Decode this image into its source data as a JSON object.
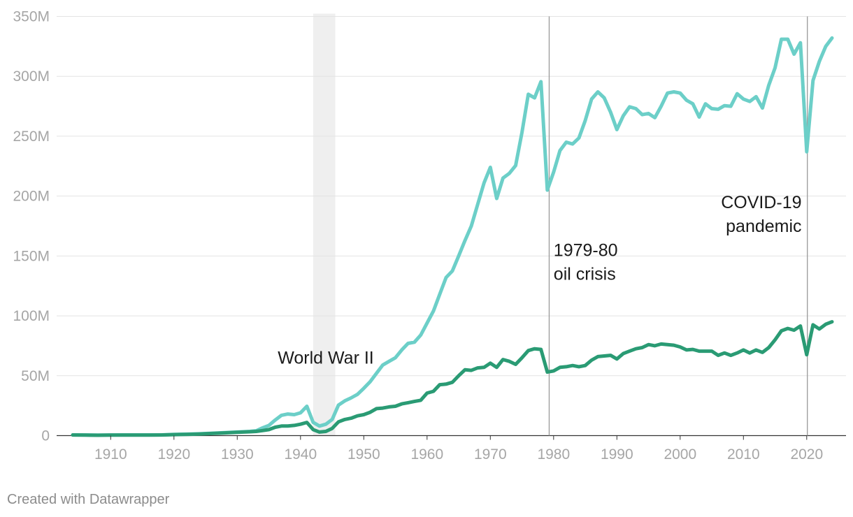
{
  "chart_data": {
    "type": "line",
    "xlim": [
      1903,
      2025
    ],
    "ylim": [
      0,
      350000000
    ],
    "grid": true,
    "y_ticks": [
      {
        "value": 0,
        "label": "0"
      },
      {
        "value": 50000000,
        "label": "50M"
      },
      {
        "value": 100000000,
        "label": "100M"
      },
      {
        "value": 150000000,
        "label": "150M"
      },
      {
        "value": 200000000,
        "label": "200M"
      },
      {
        "value": 250000000,
        "label": "250M"
      },
      {
        "value": 300000000,
        "label": "300M"
      },
      {
        "value": 350000000,
        "label": "350M"
      }
    ],
    "x_ticks": [
      {
        "value": 1910,
        "label": "1910"
      },
      {
        "value": 1920,
        "label": "1920"
      },
      {
        "value": 1930,
        "label": "1930"
      },
      {
        "value": 1940,
        "label": "1940"
      },
      {
        "value": 1950,
        "label": "1950"
      },
      {
        "value": 1960,
        "label": "1960"
      },
      {
        "value": 1970,
        "label": "1970"
      },
      {
        "value": 1980,
        "label": "1980"
      },
      {
        "value": 1990,
        "label": "1990"
      },
      {
        "value": 2000,
        "label": "2000"
      },
      {
        "value": 2010,
        "label": "2010"
      },
      {
        "value": 2020,
        "label": "2020"
      }
    ],
    "shaded_range": {
      "x_start": 1942,
      "x_end": 1945.5,
      "color": "#efefef"
    },
    "reference_lines": [
      {
        "x": 1979.3,
        "color": "#999999"
      },
      {
        "x": 2020.1,
        "color": "#999999"
      }
    ],
    "annotations": [
      {
        "lines": [
          "World War II"
        ],
        "anchor_x": 1944,
        "anchor_y": 60000000,
        "align": "middle"
      },
      {
        "lines": [
          "1979-80",
          "oil crisis"
        ],
        "anchor_x": 1980,
        "anchor_y": 150000000,
        "align": "start"
      },
      {
        "lines": [
          "COVID-19",
          "pandemic"
        ],
        "anchor_x": 2019.2,
        "anchor_y": 190000000,
        "align": "end"
      }
    ],
    "series": [
      {
        "color": "#6ccfc8",
        "points": [
          [
            1904,
            600000
          ],
          [
            1906,
            500000
          ],
          [
            1908,
            400000
          ],
          [
            1910,
            500000
          ],
          [
            1912,
            600000
          ],
          [
            1914,
            600000
          ],
          [
            1916,
            600000
          ],
          [
            1918,
            600000
          ],
          [
            1920,
            1000000
          ],
          [
            1922,
            1200000
          ],
          [
            1924,
            1500000
          ],
          [
            1926,
            2000000
          ],
          [
            1928,
            2500000
          ],
          [
            1930,
            3000000
          ],
          [
            1932,
            3500000
          ],
          [
            1933,
            4000000
          ],
          [
            1934,
            6500000
          ],
          [
            1935,
            8500000
          ],
          [
            1936,
            13000000
          ],
          [
            1937,
            17000000
          ],
          [
            1938,
            18000000
          ],
          [
            1939,
            17500000
          ],
          [
            1940,
            19000000
          ],
          [
            1941,
            24500000
          ],
          [
            1942,
            11000000
          ],
          [
            1943,
            8000000
          ],
          [
            1944,
            9500000
          ],
          [
            1945,
            13500000
          ],
          [
            1946,
            25500000
          ],
          [
            1947,
            29000000
          ],
          [
            1948,
            31500000
          ],
          [
            1949,
            34500000
          ],
          [
            1950,
            39500000
          ],
          [
            1951,
            45000000
          ],
          [
            1952,
            52000000
          ],
          [
            1953,
            59000000
          ],
          [
            1954,
            62000000
          ],
          [
            1955,
            65000000
          ],
          [
            1956,
            71500000
          ],
          [
            1957,
            77000000
          ],
          [
            1958,
            78000000
          ],
          [
            1959,
            84000000
          ],
          [
            1960,
            94000000
          ],
          [
            1961,
            104000000
          ],
          [
            1962,
            118000000
          ],
          [
            1963,
            132000000
          ],
          [
            1964,
            137500000
          ],
          [
            1965,
            150000000
          ],
          [
            1966,
            163000000
          ],
          [
            1967,
            175000000
          ],
          [
            1968,
            193000000
          ],
          [
            1969,
            211000000
          ],
          [
            1970,
            224000000
          ],
          [
            1971,
            198000000
          ],
          [
            1972,
            215000000
          ],
          [
            1973,
            219000000
          ],
          [
            1974,
            225500000
          ],
          [
            1975,
            253000000
          ],
          [
            1976,
            285000000
          ],
          [
            1977,
            282000000
          ],
          [
            1978,
            295500000
          ],
          [
            1979,
            205000000
          ],
          [
            1980,
            220000000
          ],
          [
            1981,
            238000000
          ],
          [
            1982,
            245000000
          ],
          [
            1983,
            243500000
          ],
          [
            1984,
            248500000
          ],
          [
            1985,
            263000000
          ],
          [
            1986,
            281000000
          ],
          [
            1987,
            287000000
          ],
          [
            1988,
            282000000
          ],
          [
            1989,
            270000000
          ],
          [
            1990,
            255500000
          ],
          [
            1991,
            267000000
          ],
          [
            1992,
            274500000
          ],
          [
            1993,
            273000000
          ],
          [
            1994,
            268000000
          ],
          [
            1995,
            269000000
          ],
          [
            1996,
            265500000
          ],
          [
            1997,
            275000000
          ],
          [
            1998,
            286000000
          ],
          [
            1999,
            287000000
          ],
          [
            2000,
            286000000
          ],
          [
            2001,
            280000000
          ],
          [
            2002,
            277000000
          ],
          [
            2003,
            266000000
          ],
          [
            2004,
            277000000
          ],
          [
            2005,
            273000000
          ],
          [
            2006,
            272500000
          ],
          [
            2007,
            275500000
          ],
          [
            2008,
            275000000
          ],
          [
            2009,
            285500000
          ],
          [
            2010,
            281000000
          ],
          [
            2011,
            279000000
          ],
          [
            2012,
            283000000
          ],
          [
            2013,
            273500000
          ],
          [
            2014,
            292500000
          ],
          [
            2015,
            307000000
          ],
          [
            2016,
            331000000
          ],
          [
            2017,
            331000000
          ],
          [
            2018,
            318500000
          ],
          [
            2019,
            328000000
          ],
          [
            2020,
            237000000
          ],
          [
            2021,
            296500000
          ],
          [
            2022,
            312500000
          ],
          [
            2023,
            325000000
          ],
          [
            2024,
            332000000
          ]
        ]
      },
      {
        "color": "#2a9b74",
        "points": [
          [
            1904,
            500000
          ],
          [
            1906,
            400000
          ],
          [
            1908,
            300000
          ],
          [
            1910,
            400000
          ],
          [
            1912,
            400000
          ],
          [
            1914,
            400000
          ],
          [
            1916,
            400000
          ],
          [
            1918,
            500000
          ],
          [
            1920,
            800000
          ],
          [
            1922,
            1000000
          ],
          [
            1924,
            1300000
          ],
          [
            1926,
            1800000
          ],
          [
            1928,
            2300000
          ],
          [
            1930,
            2800000
          ],
          [
            1932,
            3200000
          ],
          [
            1933,
            3500000
          ],
          [
            1934,
            4200000
          ],
          [
            1935,
            5000000
          ],
          [
            1936,
            7000000
          ],
          [
            1937,
            8000000
          ],
          [
            1938,
            8000000
          ],
          [
            1939,
            8500000
          ],
          [
            1940,
            9500000
          ],
          [
            1941,
            11000000
          ],
          [
            1942,
            5000000
          ],
          [
            1943,
            3000000
          ],
          [
            1944,
            3500000
          ],
          [
            1945,
            6000000
          ],
          [
            1946,
            11500000
          ],
          [
            1947,
            13500000
          ],
          [
            1948,
            14500000
          ],
          [
            1949,
            16500000
          ],
          [
            1950,
            17500000
          ],
          [
            1951,
            19500000
          ],
          [
            1952,
            22500000
          ],
          [
            1953,
            23000000
          ],
          [
            1954,
            24000000
          ],
          [
            1955,
            24500000
          ],
          [
            1956,
            26500000
          ],
          [
            1957,
            27500000
          ],
          [
            1958,
            28500000
          ],
          [
            1959,
            29500000
          ],
          [
            1960,
            35500000
          ],
          [
            1961,
            37000000
          ],
          [
            1962,
            42500000
          ],
          [
            1963,
            43000000
          ],
          [
            1964,
            44500000
          ],
          [
            1965,
            50000000
          ],
          [
            1966,
            55000000
          ],
          [
            1967,
            54500000
          ],
          [
            1968,
            56500000
          ],
          [
            1969,
            57000000
          ],
          [
            1970,
            60500000
          ],
          [
            1971,
            57000000
          ],
          [
            1972,
            63500000
          ],
          [
            1973,
            62000000
          ],
          [
            1974,
            59500000
          ],
          [
            1975,
            65000000
          ],
          [
            1976,
            71000000
          ],
          [
            1977,
            72500000
          ],
          [
            1978,
            72000000
          ],
          [
            1979,
            53000000
          ],
          [
            1980,
            54000000
          ],
          [
            1981,
            57000000
          ],
          [
            1982,
            57500000
          ],
          [
            1983,
            58500000
          ],
          [
            1984,
            57500000
          ],
          [
            1985,
            58500000
          ],
          [
            1986,
            63000000
          ],
          [
            1987,
            66000000
          ],
          [
            1988,
            66500000
          ],
          [
            1989,
            67000000
          ],
          [
            1990,
            64000000
          ],
          [
            1991,
            68500000
          ],
          [
            1992,
            70500000
          ],
          [
            1993,
            72500000
          ],
          [
            1994,
            73500000
          ],
          [
            1995,
            76000000
          ],
          [
            1996,
            75000000
          ],
          [
            1997,
            76500000
          ],
          [
            1998,
            76000000
          ],
          [
            1999,
            75500000
          ],
          [
            2000,
            74000000
          ],
          [
            2001,
            71500000
          ],
          [
            2002,
            72000000
          ],
          [
            2003,
            70500000
          ],
          [
            2004,
            70500000
          ],
          [
            2005,
            70500000
          ],
          [
            2006,
            67000000
          ],
          [
            2007,
            69000000
          ],
          [
            2008,
            67000000
          ],
          [
            2009,
            69000000
          ],
          [
            2010,
            71500000
          ],
          [
            2011,
            69000000
          ],
          [
            2012,
            71500000
          ],
          [
            2013,
            69500000
          ],
          [
            2014,
            73500000
          ],
          [
            2015,
            80000000
          ],
          [
            2016,
            87500000
          ],
          [
            2017,
            89500000
          ],
          [
            2018,
            88000000
          ],
          [
            2019,
            91500000
          ],
          [
            2020,
            67500000
          ],
          [
            2021,
            92500000
          ],
          [
            2022,
            89000000
          ],
          [
            2023,
            93000000
          ],
          [
            2024,
            95000000
          ]
        ]
      }
    ]
  },
  "footer": {
    "text": "Created with Datawrapper"
  }
}
